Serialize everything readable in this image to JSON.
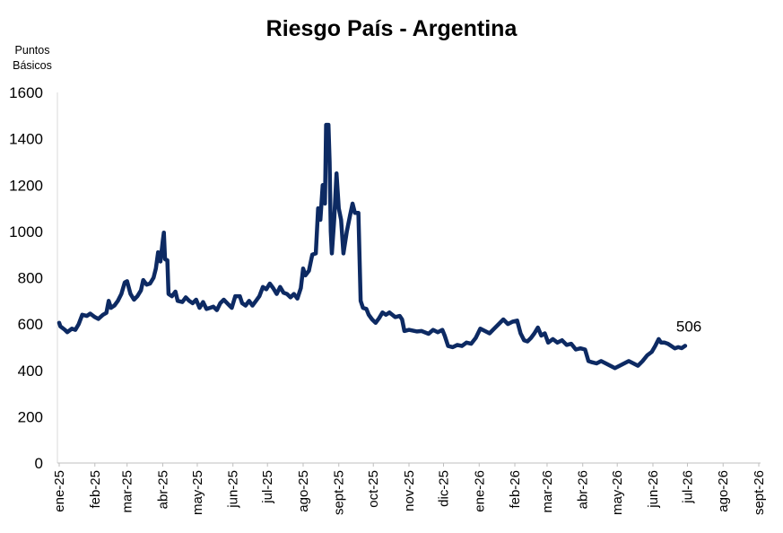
{
  "chart_data": {
    "type": "line",
    "title": "Riesgo País - Argentina",
    "ylabel": "Puntos Básicos",
    "xlabel": "",
    "ylim": [
      0,
      1600
    ],
    "yticks": [
      0,
      200,
      400,
      600,
      800,
      1000,
      1200,
      1400,
      1600
    ],
    "grid": false,
    "legend": "none",
    "line_color": "#0d2a63",
    "x_ticks": [
      "ene-25",
      "feb-25",
      "mar-25",
      "abr-25",
      "may-25",
      "jun-25",
      "jul-25",
      "ago-25",
      "sept-25",
      "oct-25",
      "nov-25",
      "dic-25",
      "ene-26",
      "feb-26",
      "mar-26",
      "abr-26",
      "may-26",
      "jun-26",
      "jul-26",
      "ago-26",
      "sept-26"
    ],
    "end_label": "506",
    "series": [
      {
        "points": [
          [
            "2025-01-01",
            605
          ],
          [
            "2025-01-02",
            590
          ],
          [
            "2025-01-06",
            575
          ],
          [
            "2025-01-08",
            565
          ],
          [
            "2025-01-12",
            580
          ],
          [
            "2025-01-15",
            575
          ],
          [
            "2025-01-18",
            600
          ],
          [
            "2025-01-21",
            640
          ],
          [
            "2025-01-25",
            635
          ],
          [
            "2025-01-28",
            645
          ],
          [
            "2025-02-01",
            630
          ],
          [
            "2025-02-04",
            622
          ],
          [
            "2025-02-08",
            640
          ],
          [
            "2025-02-11",
            648
          ],
          [
            "2025-02-13",
            700
          ],
          [
            "2025-02-15",
            670
          ],
          [
            "2025-02-18",
            680
          ],
          [
            "2025-02-21",
            700
          ],
          [
            "2025-02-24",
            730
          ],
          [
            "2025-02-27",
            780
          ],
          [
            "2025-03-01",
            785
          ],
          [
            "2025-03-04",
            730
          ],
          [
            "2025-03-07",
            705
          ],
          [
            "2025-03-10",
            720
          ],
          [
            "2025-03-13",
            745
          ],
          [
            "2025-03-15",
            790
          ],
          [
            "2025-03-18",
            770
          ],
          [
            "2025-03-21",
            775
          ],
          [
            "2025-03-24",
            800
          ],
          [
            "2025-03-26",
            840
          ],
          [
            "2025-03-28",
            910
          ],
          [
            "2025-03-30",
            870
          ],
          [
            "2025-04-01",
            960
          ],
          [
            "2025-04-02",
            995
          ],
          [
            "2025-04-03",
            880
          ],
          [
            "2025-04-05",
            875
          ],
          [
            "2025-04-06",
            730
          ],
          [
            "2025-04-09",
            720
          ],
          [
            "2025-04-12",
            740
          ],
          [
            "2025-04-14",
            700
          ],
          [
            "2025-04-18",
            695
          ],
          [
            "2025-04-21",
            715
          ],
          [
            "2025-04-24",
            700
          ],
          [
            "2025-04-27",
            690
          ],
          [
            "2025-04-30",
            705
          ],
          [
            "2025-05-03",
            670
          ],
          [
            "2025-05-06",
            695
          ],
          [
            "2025-05-09",
            665
          ],
          [
            "2025-05-12",
            670
          ],
          [
            "2025-05-15",
            675
          ],
          [
            "2025-05-18",
            660
          ],
          [
            "2025-05-21",
            690
          ],
          [
            "2025-05-24",
            705
          ],
          [
            "2025-05-27",
            690
          ],
          [
            "2025-05-31",
            670
          ],
          [
            "2025-06-03",
            720
          ],
          [
            "2025-06-07",
            720
          ],
          [
            "2025-06-09",
            690
          ],
          [
            "2025-06-12",
            680
          ],
          [
            "2025-06-15",
            700
          ],
          [
            "2025-06-18",
            680
          ],
          [
            "2025-06-21",
            700
          ],
          [
            "2025-06-24",
            720
          ],
          [
            "2025-06-27",
            760
          ],
          [
            "2025-06-30",
            750
          ],
          [
            "2025-07-03",
            775
          ],
          [
            "2025-07-06",
            755
          ],
          [
            "2025-07-09",
            730
          ],
          [
            "2025-07-12",
            760
          ],
          [
            "2025-07-15",
            735
          ],
          [
            "2025-07-18",
            730
          ],
          [
            "2025-07-21",
            715
          ],
          [
            "2025-07-24",
            730
          ],
          [
            "2025-07-27",
            710
          ],
          [
            "2025-07-30",
            755
          ],
          [
            "2025-08-01",
            840
          ],
          [
            "2025-08-03",
            810
          ],
          [
            "2025-08-06",
            830
          ],
          [
            "2025-08-09",
            900
          ],
          [
            "2025-08-12",
            905
          ],
          [
            "2025-08-14",
            1100
          ],
          [
            "2025-08-16",
            1050
          ],
          [
            "2025-08-18",
            1200
          ],
          [
            "2025-08-20",
            1120
          ],
          [
            "2025-08-21",
            1460
          ],
          [
            "2025-08-23",
            1460
          ],
          [
            "2025-08-24",
            1300
          ],
          [
            "2025-08-25",
            1000
          ],
          [
            "2025-08-26",
            905
          ],
          [
            "2025-08-28",
            1050
          ],
          [
            "2025-08-30",
            1250
          ],
          [
            "2025-09-01",
            1100
          ],
          [
            "2025-09-03",
            1050
          ],
          [
            "2025-09-05",
            905
          ],
          [
            "2025-09-08",
            1000
          ],
          [
            "2025-09-11",
            1075
          ],
          [
            "2025-09-13",
            1120
          ],
          [
            "2025-09-15",
            1080
          ],
          [
            "2025-09-18",
            1080
          ],
          [
            "2025-09-20",
            700
          ],
          [
            "2025-09-22",
            670
          ],
          [
            "2025-09-25",
            665
          ],
          [
            "2025-09-27",
            640
          ],
          [
            "2025-09-30",
            620
          ],
          [
            "2025-10-03",
            605
          ],
          [
            "2025-10-06",
            625
          ],
          [
            "2025-10-09",
            650
          ],
          [
            "2025-10-12",
            640
          ],
          [
            "2025-10-15",
            650
          ],
          [
            "2025-10-20",
            630
          ],
          [
            "2025-10-24",
            635
          ],
          [
            "2025-10-26",
            620
          ],
          [
            "2025-10-28",
            570
          ],
          [
            "2025-11-01",
            575
          ],
          [
            "2025-11-08",
            568
          ],
          [
            "2025-11-12",
            570
          ],
          [
            "2025-11-18",
            558
          ],
          [
            "2025-11-22",
            575
          ],
          [
            "2025-11-26",
            565
          ],
          [
            "2025-11-30",
            575
          ],
          [
            "2025-12-02",
            550
          ],
          [
            "2025-12-05",
            505
          ],
          [
            "2025-12-09",
            500
          ],
          [
            "2025-12-13",
            510
          ],
          [
            "2025-12-17",
            505
          ],
          [
            "2025-12-21",
            520
          ],
          [
            "2025-12-25",
            515
          ],
          [
            "2025-12-29",
            540
          ],
          [
            "2026-01-02",
            580
          ],
          [
            "2026-01-06",
            570
          ],
          [
            "2026-01-10",
            560
          ],
          [
            "2026-01-14",
            580
          ],
          [
            "2026-01-18",
            600
          ],
          [
            "2026-01-22",
            620
          ],
          [
            "2026-01-26",
            600
          ],
          [
            "2026-01-30",
            610
          ],
          [
            "2026-02-03",
            615
          ],
          [
            "2026-02-06",
            560
          ],
          [
            "2026-02-09",
            530
          ],
          [
            "2026-02-12",
            525
          ],
          [
            "2026-02-15",
            540
          ],
          [
            "2026-02-18",
            560
          ],
          [
            "2026-02-21",
            585
          ],
          [
            "2026-02-24",
            550
          ],
          [
            "2026-02-27",
            560
          ],
          [
            "2026-03-02",
            520
          ],
          [
            "2026-03-06",
            535
          ],
          [
            "2026-03-10",
            520
          ],
          [
            "2026-03-14",
            530
          ],
          [
            "2026-03-18",
            510
          ],
          [
            "2026-03-22",
            515
          ],
          [
            "2026-03-26",
            490
          ],
          [
            "2026-03-30",
            495
          ],
          [
            "2026-04-03",
            490
          ],
          [
            "2026-04-06",
            440
          ],
          [
            "2026-04-09",
            435
          ],
          [
            "2026-04-13",
            430
          ],
          [
            "2026-04-17",
            440
          ],
          [
            "2026-04-21",
            430
          ],
          [
            "2026-04-25",
            420
          ],
          [
            "2026-04-29",
            410
          ],
          [
            "2026-05-03",
            420
          ],
          [
            "2026-05-07",
            430
          ],
          [
            "2026-05-11",
            440
          ],
          [
            "2026-05-15",
            430
          ],
          [
            "2026-05-19",
            420
          ],
          [
            "2026-05-23",
            440
          ],
          [
            "2026-05-27",
            465
          ],
          [
            "2026-05-31",
            480
          ],
          [
            "2026-06-03",
            505
          ],
          [
            "2026-06-06",
            535
          ],
          [
            "2026-06-08",
            520
          ],
          [
            "2026-06-11",
            520
          ],
          [
            "2026-06-14",
            515
          ],
          [
            "2026-06-17",
            505
          ],
          [
            "2026-06-20",
            495
          ],
          [
            "2026-06-23",
            500
          ],
          [
            "2026-06-26",
            496
          ],
          [
            "2026-06-29",
            506
          ]
        ]
      }
    ]
  }
}
